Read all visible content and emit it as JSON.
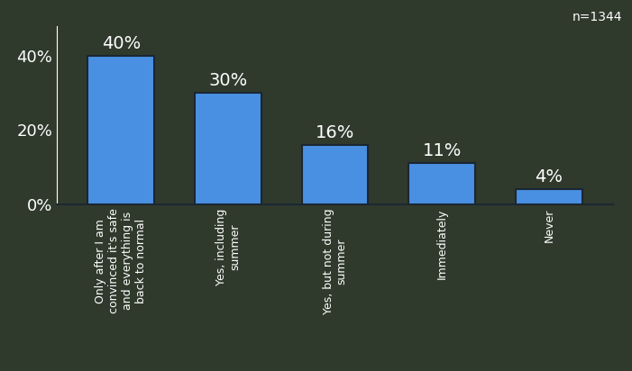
{
  "chart_data": {
    "type": "bar",
    "categories": [
      "Only after I am convinced it's safe and everything is back to normal",
      "Yes, including summer",
      "Yes, but not during summer",
      "Immediately",
      "Never"
    ],
    "values": [
      40,
      30,
      16,
      11,
      4
    ],
    "value_labels": [
      "40%",
      "30%",
      "16%",
      "11%",
      "4%"
    ],
    "data_labels": true,
    "color": "#4a90e2",
    "ylim": [
      0,
      48
    ],
    "yticks": [
      {
        "value": 0,
        "label": "0%"
      },
      {
        "value": 20,
        "label": "20%"
      },
      {
        "value": 40,
        "label": "40%"
      }
    ],
    "grid": false,
    "annotations": [
      "n=1344"
    ]
  }
}
